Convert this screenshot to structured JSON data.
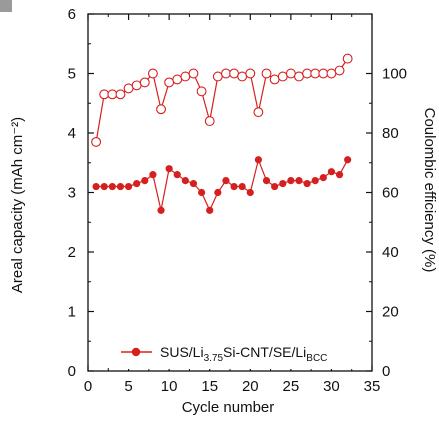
{
  "chart_data": {
    "type": "scatter",
    "xlabel": "Cycle number",
    "ylabel_left": "Areal capacity (mAh cm⁻²)",
    "ylabel_right": "Coulombic efficiency (%)",
    "xlim": [
      0,
      35
    ],
    "ylim_left": [
      0,
      6
    ],
    "ylim_right": [
      0,
      120
    ],
    "x_ticks": [
      "0",
      "5",
      "10",
      "15",
      "20",
      "25",
      "30",
      "35"
    ],
    "y_left_ticks": [
      "0",
      "1",
      "2",
      "3",
      "4",
      "5",
      "6"
    ],
    "y_right_ticks": [
      "0",
      "20",
      "40",
      "60",
      "80",
      "100"
    ],
    "colors": {
      "series": "#d62020",
      "axes": "#111111"
    },
    "legend": {
      "label_main": "SUS/Li",
      "sub1": "3.75",
      "mid": "Si-CNT/SE/Li",
      "sub2": "BCC",
      "position": "bottom-center"
    },
    "series": [
      {
        "axis": "left",
        "marker": "filled-circle",
        "x": [
          1,
          2,
          3,
          4,
          5,
          6,
          7,
          8,
          9,
          10,
          11,
          12,
          13,
          14,
          15,
          16,
          17,
          18,
          19,
          20,
          21,
          22,
          23,
          24,
          25,
          26,
          27,
          28,
          29,
          30,
          31,
          32
        ],
        "y": [
          3.1,
          3.1,
          3.1,
          3.1,
          3.1,
          3.15,
          3.2,
          3.3,
          2.7,
          3.4,
          3.3,
          3.2,
          3.15,
          3.0,
          2.7,
          3.0,
          3.2,
          3.1,
          3.1,
          3.0,
          3.55,
          3.2,
          3.1,
          3.15,
          3.2,
          3.2,
          3.15,
          3.2,
          3.25,
          3.35,
          3.3,
          3.55
        ]
      },
      {
        "axis": "right",
        "marker": "open-circle",
        "x": [
          1,
          2,
          3,
          4,
          5,
          6,
          7,
          8,
          9,
          10,
          11,
          12,
          13,
          14,
          15,
          16,
          17,
          18,
          19,
          20,
          21,
          22,
          23,
          24,
          25,
          26,
          27,
          28,
          29,
          30,
          31,
          32
        ],
        "y": [
          77,
          93,
          93,
          93,
          95,
          96,
          97,
          100,
          88,
          97,
          98,
          99,
          100,
          94,
          84,
          99,
          100,
          100,
          99,
          100,
          87,
          100,
          98,
          99,
          100,
          99,
          100,
          100,
          100,
          100,
          101,
          105
        ]
      }
    ]
  }
}
